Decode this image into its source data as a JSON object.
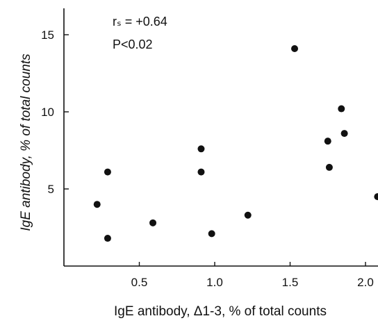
{
  "chart_data": {
    "type": "scatter",
    "title": "",
    "xlabel": "IgE antibody, Δ1-3, % of total counts",
    "ylabel": "IgE antibody, % of total counts",
    "xlim": [
      0,
      2.1
    ],
    "ylim": [
      0,
      17
    ],
    "x_ticks": [
      0.5,
      1.0,
      1.5,
      2.0
    ],
    "x_tick_labels": [
      "0.5",
      "1.0",
      "1.5",
      "2.0"
    ],
    "y_ticks": [
      5,
      10,
      15
    ],
    "y_tick_labels": [
      "5",
      "10",
      "15"
    ],
    "grid": false,
    "annotations": {
      "rs": "rₛ = +0.64",
      "p": "P<0.02"
    },
    "series": [
      {
        "points": [
          {
            "x": 0.22,
            "y": 4.0
          },
          {
            "x": 0.29,
            "y": 6.1
          },
          {
            "x": 0.29,
            "y": 1.8
          },
          {
            "x": 0.59,
            "y": 2.8
          },
          {
            "x": 0.91,
            "y": 7.6
          },
          {
            "x": 0.91,
            "y": 6.1
          },
          {
            "x": 0.98,
            "y": 2.1
          },
          {
            "x": 1.22,
            "y": 3.3
          },
          {
            "x": 1.53,
            "y": 14.1
          },
          {
            "x": 1.75,
            "y": 8.1
          },
          {
            "x": 1.76,
            "y": 6.4
          },
          {
            "x": 1.84,
            "y": 10.2
          },
          {
            "x": 1.86,
            "y": 8.6
          },
          {
            "x": 2.08,
            "y": 4.5
          }
        ]
      }
    ]
  }
}
